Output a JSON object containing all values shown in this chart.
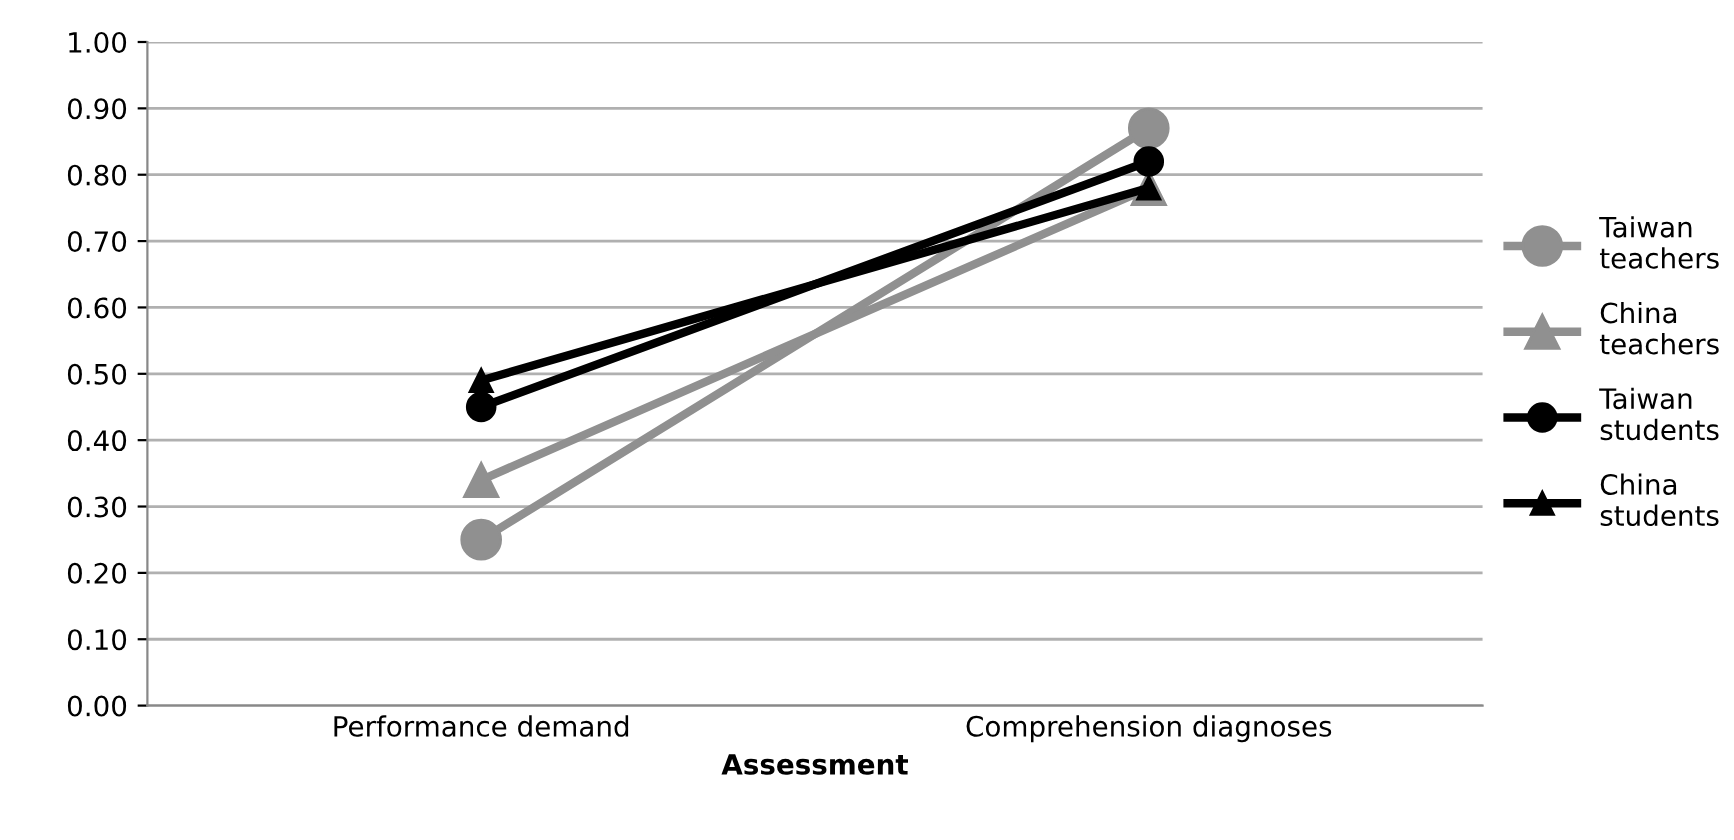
{
  "chart_data": {
    "type": "line",
    "xlabel": "Assessment",
    "categories": [
      "Performance demand",
      "Comprehension diagnoses"
    ],
    "series": [
      {
        "name": "Taiwan\nteachers",
        "color": "#909090",
        "marker": "circle",
        "values": [
          0.25,
          0.87
        ]
      },
      {
        "name": "China\nteachers",
        "color": "#909090",
        "marker": "triangle",
        "values": [
          0.34,
          0.78
        ]
      },
      {
        "name": "Taiwan\nstudents",
        "color": "#000000",
        "marker": "circle",
        "values": [
          0.45,
          0.82
        ]
      },
      {
        "name": "China\nstudents",
        "color": "#000000",
        "marker": "triangle",
        "values": [
          0.49,
          0.78
        ]
      }
    ],
    "ylim": [
      0,
      1
    ],
    "yticks": [
      {
        "value": 0,
        "label": "0.00"
      },
      {
        "value": 0.1,
        "label": "0.10"
      },
      {
        "value": 0.2,
        "label": "0.20"
      },
      {
        "value": 0.3,
        "label": "0.30"
      },
      {
        "value": 0.4,
        "label": "0.40"
      },
      {
        "value": 0.5,
        "label": "0.50"
      },
      {
        "value": 0.6,
        "label": "0.60"
      },
      {
        "value": 0.7,
        "label": "0.70"
      },
      {
        "value": 0.8,
        "label": "0.80"
      },
      {
        "value": 0.9,
        "label": "0.90"
      },
      {
        "value": 1,
        "label": "1.00"
      }
    ],
    "grid": "y",
    "legend": "right",
    "line_style": "solid"
  }
}
